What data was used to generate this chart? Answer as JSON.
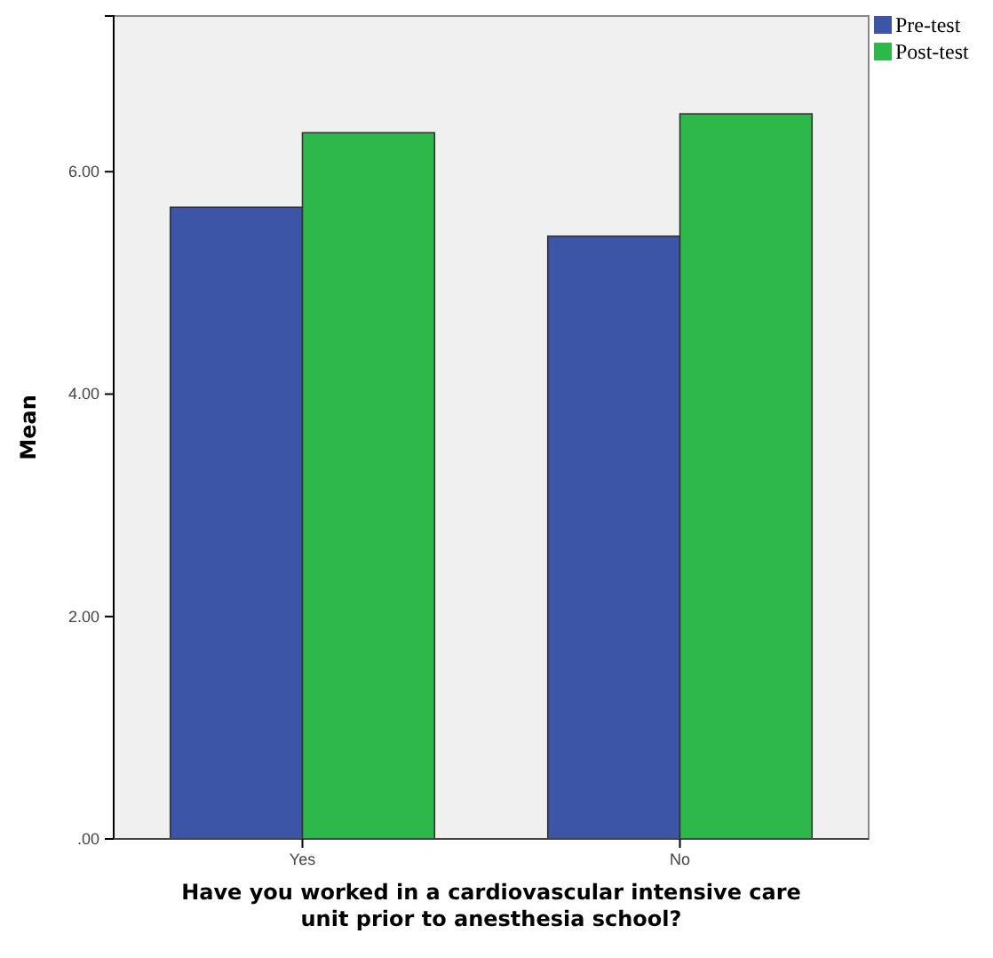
{
  "chart_data": {
    "type": "bar",
    "xlabel": "Have you worked in a cardiovascular intensive care unit prior to anesthesia school?",
    "ylabel": "Mean",
    "categories": [
      "Yes",
      "No"
    ],
    "series": [
      {
        "name": "Pre-test",
        "color": "#3d55a6",
        "values": [
          5.68,
          5.42
        ]
      },
      {
        "name": "Post-test",
        "color": "#2eb84a",
        "values": [
          6.35,
          6.52
        ]
      }
    ],
    "ylim": [
      0,
      7.4
    ],
    "yticks": [
      {
        "value": 0,
        "label": ".00"
      },
      {
        "value": 2,
        "label": "2.00"
      },
      {
        "value": 4,
        "label": "4.00"
      },
      {
        "value": 6,
        "label": "6.00"
      }
    ],
    "legend": "top right"
  }
}
